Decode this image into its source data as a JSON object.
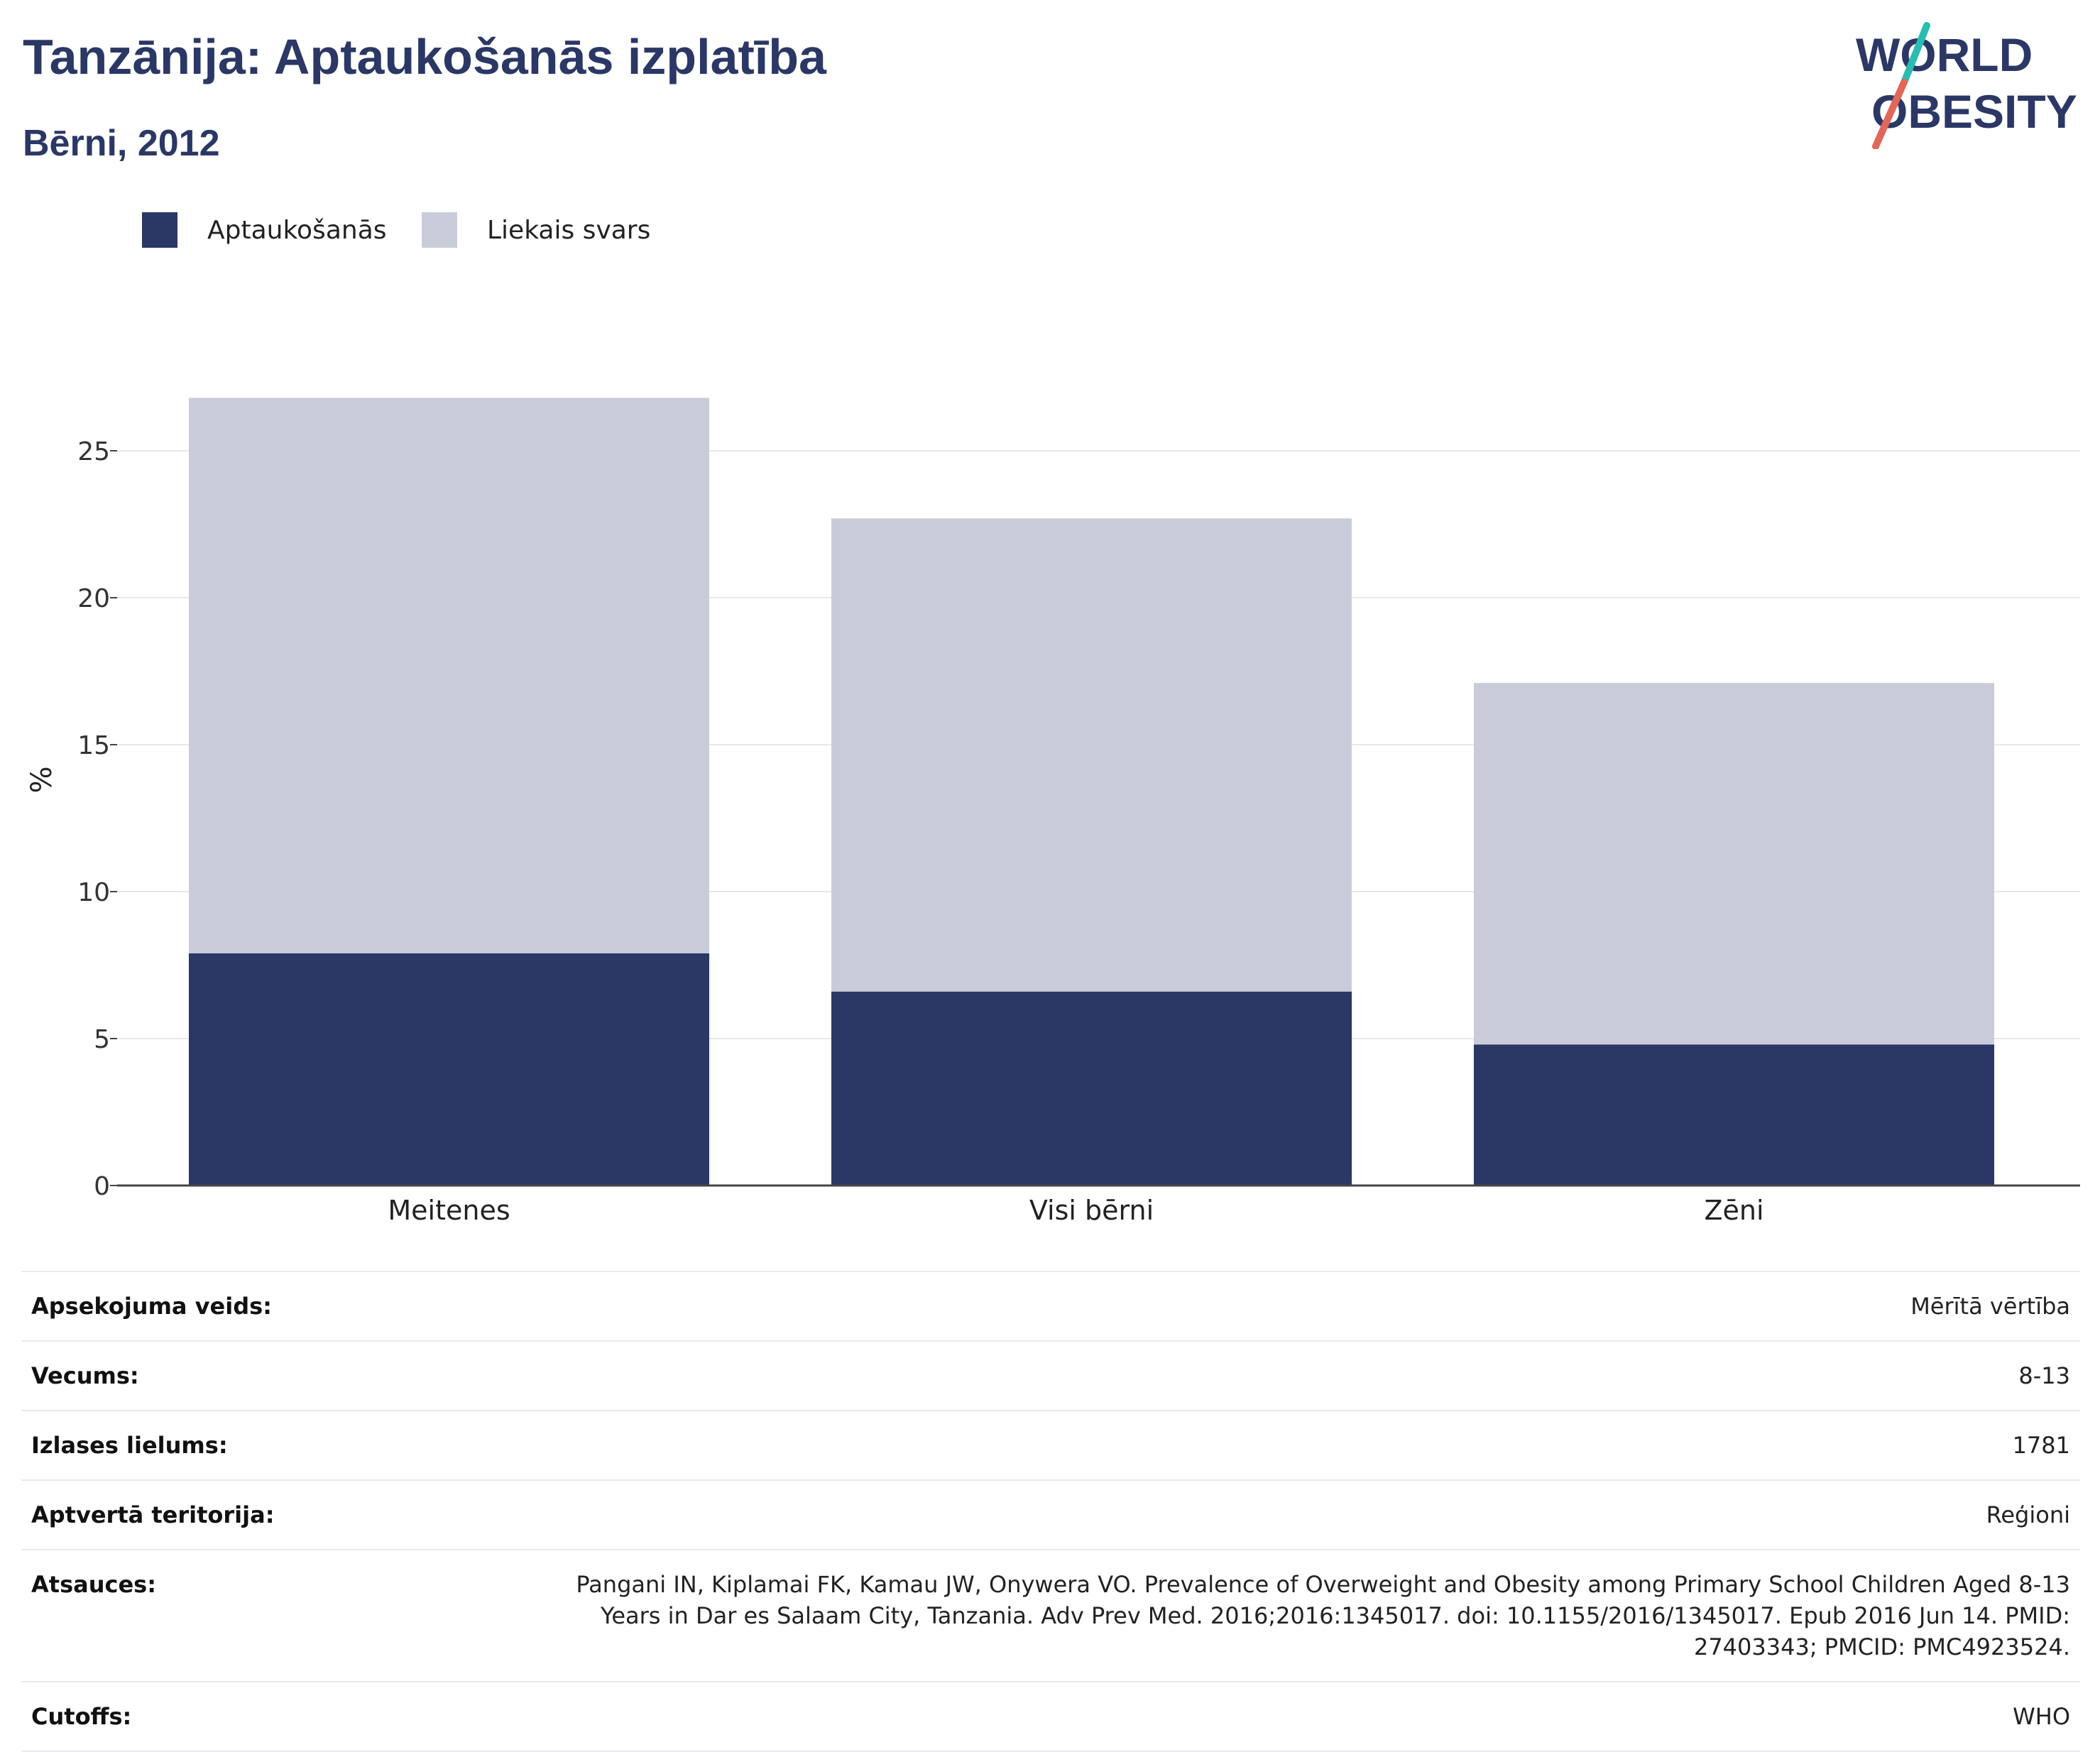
{
  "header": {
    "title": "Tanzānija: Aptaukošanās izplatība",
    "subtitle": "Bērni, 2012"
  },
  "logo": {
    "line1": "WORLD",
    "line2": "OBESITY"
  },
  "colors": {
    "obesity": "#2b3765",
    "overweight": "#c9ccd8",
    "title": "#2b3765",
    "logo_slash_top": "#2bbcb0",
    "logo_slash_bottom": "#e2675b"
  },
  "chart_data": {
    "type": "bar",
    "stacked": true,
    "categories": [
      "Meitenes",
      "Visi bērni",
      "Zēni"
    ],
    "series": [
      {
        "name": "Aptaukošanās",
        "values": [
          7.9,
          6.6,
          4.8
        ],
        "color": "#2b3765"
      },
      {
        "name": "Liekais svars",
        "values": [
          18.9,
          16.1,
          12.3
        ],
        "color": "#c9ccd8"
      }
    ],
    "totals": [
      26.8,
      22.7,
      17.1
    ],
    "ylabel": "%",
    "xlabel": "",
    "ylim": [
      0,
      28
    ],
    "yticks": [
      0,
      5,
      10,
      15,
      20,
      25
    ],
    "grid": true,
    "legend_position": "top-left"
  },
  "info": [
    {
      "label": "Apsekojuma veids:",
      "value": "Mērītā vērtība"
    },
    {
      "label": "Vecums:",
      "value": "8-13"
    },
    {
      "label": "Izlases lielums:",
      "value": "1781"
    },
    {
      "label": "Aptvertā teritorija:",
      "value": "Reģioni"
    },
    {
      "label": "Atsauces:",
      "value": "Pangani IN, Kiplamai FK, Kamau JW, Onywera VO. Prevalence of Overweight and Obesity among Primary School Children Aged 8-13 Years in Dar es Salaam City, Tanzania. Adv Prev Med. 2016;2016:1345017. doi: 10.1155/2016/1345017. Epub 2016 Jun 14. PMID: 27403343; PMCID: PMC4923524."
    },
    {
      "label": "Cutoffs:",
      "value": "WHO"
    }
  ]
}
